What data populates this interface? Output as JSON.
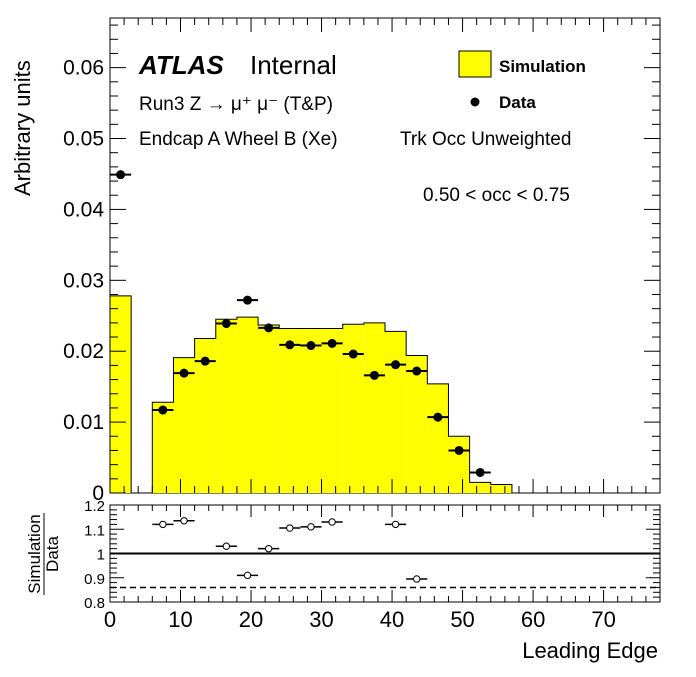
{
  "chart_data": [
    {
      "type": "bar",
      "panel": "main",
      "ylabel": "Arbitrary units",
      "ylim": [
        0,
        0.067
      ],
      "yticks": [
        "0",
        "0.01",
        "0.02",
        "0.03",
        "0.04",
        "0.05",
        "0.06"
      ],
      "xlim": [
        0,
        78
      ],
      "bin_width": 3,
      "atlas_label": "ATLAS",
      "atlas_status": "Internal",
      "info_lines": [
        "Run3 Z → μ⁺ μ⁻ (T&P)",
        "Endcap A Wheel B (Xe)",
        "Trk Occ Unweighted",
        "0.50 < occ < 0.75"
      ],
      "legend": {
        "position": "top-right",
        "entries": [
          "Simulation",
          "Data"
        ]
      },
      "series": [
        {
          "name": "Simulation",
          "color": "#ffff00",
          "edges": [
            0,
            3,
            6,
            9,
            12,
            15,
            18,
            21,
            24,
            27,
            30,
            33,
            36,
            39,
            42,
            45,
            48,
            51,
            54,
            57
          ],
          "values": [
            0.0278,
            0,
            0.0128,
            0.0191,
            0.0218,
            0.0245,
            0.0248,
            0.0237,
            0.0232,
            0.0232,
            0.0232,
            0.0238,
            0.024,
            0.0228,
            0.0194,
            0.0154,
            0.008,
            0.0015,
            0.0012
          ]
        },
        {
          "name": "Data",
          "color": "#000000",
          "x": [
            1.5,
            7.5,
            10.5,
            13.5,
            16.5,
            19.5,
            22.5,
            25.5,
            28.5,
            31.5,
            34.5,
            37.5,
            40.5,
            43.5,
            46.5,
            49.5,
            52.5
          ],
          "values": [
            0.0449,
            0.0117,
            0.0169,
            0.0186,
            0.0239,
            0.0272,
            0.0233,
            0.0209,
            0.0208,
            0.0211,
            0.0196,
            0.0166,
            0.0181,
            0.0172,
            0.0107,
            0.006,
            0.0029
          ]
        }
      ]
    },
    {
      "type": "scatter",
      "panel": "ratio",
      "xlabel": "Leading Edge",
      "ylabel_top": "Simulation",
      "ylabel_bottom": "Data",
      "ylim": [
        0.8,
        1.2
      ],
      "yticks": [
        "0.8",
        "0.9",
        "1",
        "1.1",
        "1.2"
      ],
      "xticks": [
        "0",
        "10",
        "20",
        "30",
        "40",
        "50",
        "60",
        "70"
      ],
      "xlim": [
        0,
        78
      ],
      "reference_line": 1.0,
      "dashed_line": 0.86,
      "series": [
        {
          "name": "Simulation / Data",
          "x": [
            7.5,
            10.5,
            16.5,
            19.5,
            22.5,
            25.5,
            28.5,
            31.5,
            40.5,
            43.5
          ],
          "values": [
            1.12,
            1.135,
            1.03,
            0.91,
            1.02,
            1.105,
            1.11,
            1.13,
            1.12,
            0.895
          ]
        }
      ]
    }
  ]
}
